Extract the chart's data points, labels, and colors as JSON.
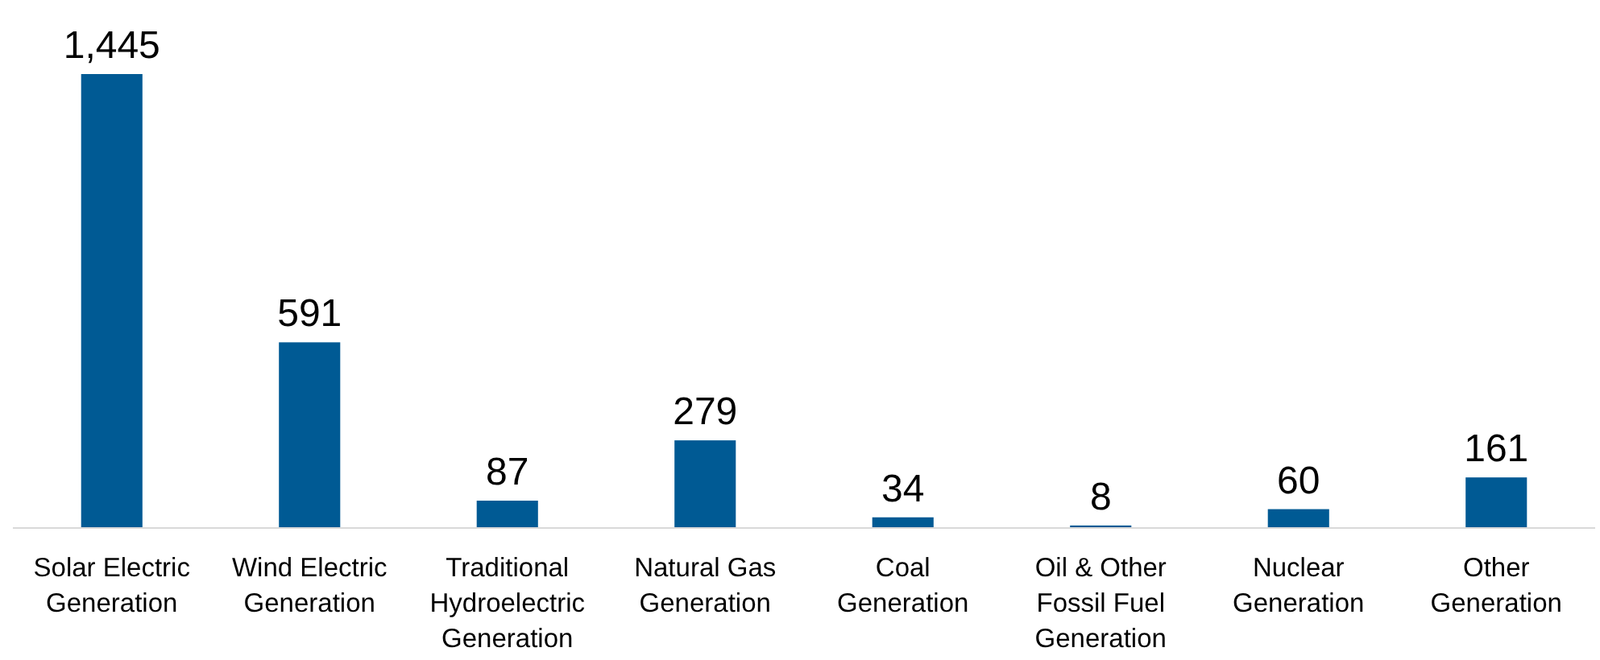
{
  "chart_data": {
    "type": "bar",
    "categories": [
      "Solar Electric Generation",
      "Wind Electric Generation",
      "Traditional Hydroelectric Generation",
      "Natural Gas Generation",
      "Coal Generation",
      "Oil & Other Fossil Fuel Generation",
      "Nuclear Generation",
      "Other Generation"
    ],
    "values": [
      1445,
      591,
      87,
      279,
      34,
      8,
      60,
      161
    ],
    "value_labels": [
      "1,445",
      "591",
      "87",
      "279",
      "34",
      "8",
      "60",
      "161"
    ],
    "color": "#005a94"
  }
}
